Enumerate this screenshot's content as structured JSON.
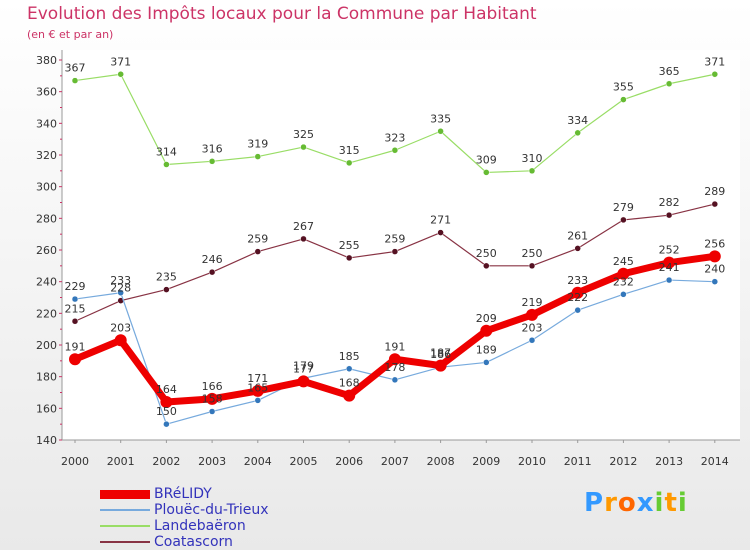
{
  "title": "Evolution des Impôts locaux pour la Commune par Habitant",
  "subtitle": "(en € et par an)",
  "logo": {
    "text": "Proxiti",
    "letters": [
      "P",
      "r",
      "o",
      "x",
      "i",
      "t",
      "i"
    ],
    "colors": [
      "#3399ff",
      "#ff9900",
      "#ff6600",
      "#3399ff",
      "#66cc33",
      "#ff9900",
      "#66cc33"
    ]
  },
  "chart_data": {
    "type": "line",
    "x": [
      "2000",
      "2001",
      "2002",
      "2003",
      "2004",
      "2005",
      "2006",
      "2007",
      "2008",
      "2009",
      "2010",
      "2011",
      "2012",
      "2013",
      "2014"
    ],
    "ylim": [
      140,
      380
    ],
    "yticks": [
      140,
      160,
      180,
      200,
      220,
      240,
      260,
      280,
      300,
      320,
      340,
      360,
      380
    ],
    "grid": false,
    "legend_position": "bottom-left",
    "series": [
      {
        "name": "Landebaëron",
        "color": "#99dd66",
        "marker": "#66bb33",
        "width": 1.2,
        "values": [
          367,
          371,
          314,
          316,
          319,
          325,
          315,
          323,
          335,
          309,
          310,
          334,
          355,
          365,
          371
        ]
      },
      {
        "name": "Coatascorn",
        "color": "#883344",
        "marker": "#551122",
        "width": 1.2,
        "values": [
          215,
          228,
          235,
          246,
          259,
          267,
          255,
          259,
          271,
          250,
          250,
          261,
          279,
          282,
          289
        ]
      },
      {
        "name": "Plouëc-du-Trieux",
        "color": "#77aadd",
        "marker": "#3377bb",
        "width": 1.2,
        "values": [
          229,
          233,
          150,
          158,
          165,
          179,
          185,
          178,
          186,
          189,
          203,
          222,
          232,
          241,
          240
        ]
      },
      {
        "name": "BRéLIDY",
        "color": "#ee0000",
        "marker": "#ee0000",
        "width": 7,
        "values": [
          191,
          203,
          164,
          166,
          171,
          177,
          168,
          191,
          187,
          209,
          219,
          233,
          245,
          252,
          256
        ]
      }
    ],
    "legend_order": [
      "BRéLIDY",
      "Plouëc-du-Trieux",
      "Landebaëron",
      "Coatascorn"
    ]
  }
}
